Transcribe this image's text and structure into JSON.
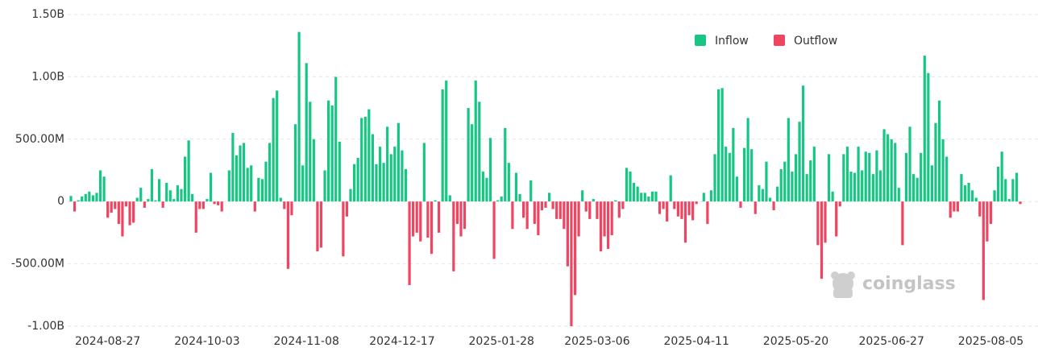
{
  "chart_data": {
    "type": "bar",
    "legend": [
      {
        "name": "Inflow",
        "color": "#16c784"
      },
      {
        "name": "Outflow",
        "color": "#ef4561"
      }
    ],
    "watermark": "coinglass",
    "ylim": [
      -1000,
      1500
    ],
    "yticks": [
      {
        "value": -1000,
        "label": "-1.00B"
      },
      {
        "value": -500,
        "label": "-500.00M"
      },
      0,
      {
        "value": 500,
        "label": "500.00M"
      },
      {
        "value": 1000,
        "label": "1.00B"
      },
      {
        "value": 1500,
        "label": "1.50B"
      }
    ],
    "grid": true,
    "categories": [
      null,
      null,
      null,
      null,
      null,
      null,
      null,
      null,
      null,
      null,
      "2024-08-27",
      null,
      null,
      null,
      null,
      null,
      null,
      null,
      null,
      null,
      null,
      null,
      null,
      null,
      null,
      null,
      null,
      null,
      null,
      null,
      null,
      null,
      null,
      null,
      null,
      null,
      null,
      "2024-10-03",
      null,
      null,
      null,
      null,
      null,
      null,
      null,
      null,
      null,
      null,
      null,
      null,
      null,
      null,
      null,
      null,
      null,
      null,
      null,
      null,
      null,
      null,
      null,
      null,
      null,
      null,
      "2024-11-08",
      null,
      null,
      null,
      null,
      null,
      null,
      null,
      null,
      null,
      null,
      null,
      null,
      null,
      null,
      null,
      null,
      null,
      null,
      null,
      null,
      null,
      null,
      null,
      null,
      null,
      "2024-12-17",
      null,
      null,
      null,
      null,
      null,
      null,
      null,
      null,
      null,
      null,
      null,
      null,
      null,
      null,
      null,
      null,
      null,
      null,
      null,
      null,
      null,
      null,
      null,
      null,
      null,
      null,
      "2025-01-28",
      null,
      null,
      null,
      null,
      null,
      null,
      null,
      null,
      null,
      null,
      null,
      null,
      null,
      null,
      null,
      null,
      null,
      null,
      null,
      null,
      null,
      null,
      null,
      null,
      null,
      "2025-03-06",
      null,
      null,
      null,
      null,
      null,
      null,
      null,
      null,
      null,
      null,
      null,
      null,
      null,
      null,
      null,
      null,
      null,
      null,
      null,
      null,
      null,
      null,
      null,
      null,
      null,
      null,
      "2025-04-11",
      null,
      null,
      null,
      null,
      null,
      null,
      null,
      null,
      null,
      null,
      null,
      null,
      null,
      null,
      null,
      null,
      null,
      null,
      null,
      null,
      null,
      null,
      null,
      null,
      null,
      null,
      "2025-05-20",
      null,
      null,
      null,
      null,
      null,
      null,
      null,
      null,
      null,
      null,
      null,
      null,
      null,
      null,
      null,
      null,
      null,
      null,
      null,
      null,
      null,
      null,
      null,
      null,
      null,
      "2025-06-27",
      null,
      null,
      null,
      null,
      null,
      null,
      null,
      null,
      null,
      null,
      null,
      null,
      null,
      null,
      null,
      null,
      null,
      null,
      null,
      null,
      null,
      null,
      null,
      null,
      null,
      null,
      "2025-08-05",
      null,
      null,
      null,
      null,
      null,
      null,
      null,
      null
    ],
    "values": [
      45,
      -80,
      10,
      40,
      60,
      80,
      50,
      70,
      250,
      200,
      -130,
      -90,
      -60,
      -180,
      -280,
      -40,
      -190,
      -170,
      30,
      110,
      -50,
      20,
      260,
      10,
      180,
      -50,
      150,
      90,
      20,
      130,
      100,
      360,
      490,
      60,
      -250,
      -60,
      -60,
      20,
      230,
      -20,
      -30,
      -80,
      0,
      250,
      550,
      370,
      450,
      470,
      270,
      290,
      -80,
      190,
      180,
      320,
      470,
      830,
      890,
      30,
      -60,
      -540,
      -110,
      620,
      1360,
      290,
      1110,
      800,
      500,
      -400,
      -370,
      250,
      810,
      770,
      1000,
      480,
      -440,
      -120,
      100,
      300,
      350,
      670,
      680,
      740,
      540,
      300,
      440,
      310,
      600,
      380,
      440,
      630,
      410,
      260,
      -670,
      -280,
      -250,
      -320,
      470,
      -290,
      -420,
      10,
      -250,
      900,
      970,
      50,
      -560,
      -180,
      -280,
      -220,
      750,
      620,
      970,
      800,
      240,
      190,
      510,
      -460,
      10,
      40,
      590,
      310,
      -220,
      230,
      60,
      -130,
      -220,
      170,
      -180,
      -270,
      -70,
      -50,
      70,
      -60,
      -140,
      -140,
      -220,
      -520,
      -1000,
      -750,
      -280,
      90,
      -80,
      -140,
      20,
      -140,
      -400,
      -280,
      -380,
      -270,
      10,
      -130,
      -60,
      270,
      240,
      150,
      120,
      70,
      70,
      40,
      80,
      80,
      -100,
      -60,
      -160,
      210,
      -60,
      -120,
      -140,
      -330,
      -110,
      -150,
      -20,
      0,
      70,
      -180,
      90,
      380,
      900,
      910,
      440,
      390,
      590,
      200,
      -50,
      430,
      670,
      420,
      -100,
      130,
      100,
      320,
      30,
      -70,
      120,
      260,
      320,
      670,
      240,
      380,
      640,
      930,
      220,
      330,
      440,
      -350,
      -620,
      -330,
      380,
      80,
      -280,
      -40,
      380,
      440,
      240,
      230,
      440,
      250,
      400,
      390,
      220,
      410,
      250,
      580,
      540,
      500,
      470,
      110,
      -350,
      390,
      600,
      220,
      190,
      390,
      1170,
      1030,
      290,
      630,
      810,
      500,
      360,
      -130,
      -80,
      -80,
      220,
      130,
      150,
      90,
      30,
      -120,
      -790,
      -320,
      -180,
      90,
      280,
      400,
      180,
      20,
      180,
      230,
      -20
    ]
  }
}
